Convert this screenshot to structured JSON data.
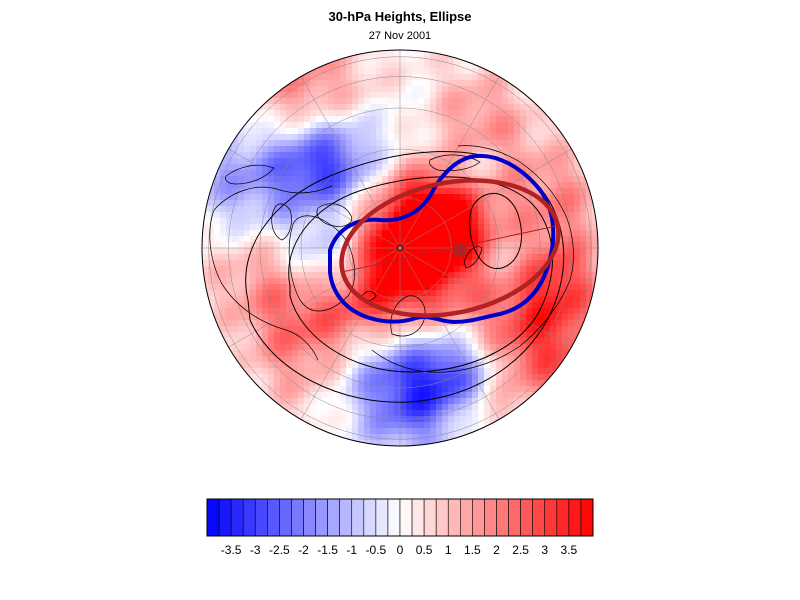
{
  "header": {
    "title": "30-hPa Heights, Ellipse",
    "date": "27 Nov 2001"
  },
  "colorbar": {
    "labels": [
      "-3.5",
      "-3",
      "-2.5",
      "-2",
      "-1.5",
      "-1",
      "-0.5",
      "0",
      "0.5",
      "1",
      "1.5",
      "2",
      "2.5",
      "3",
      "3.5"
    ],
    "min": -4,
    "max": 4,
    "negative_color": "#0000ff",
    "positive_color": "#ff0000"
  },
  "map": {
    "projection": "north-polar-orthographic",
    "ellipse_color": "#b22222",
    "contour_color": "#0000c8",
    "coastline_color": "#000000"
  }
}
